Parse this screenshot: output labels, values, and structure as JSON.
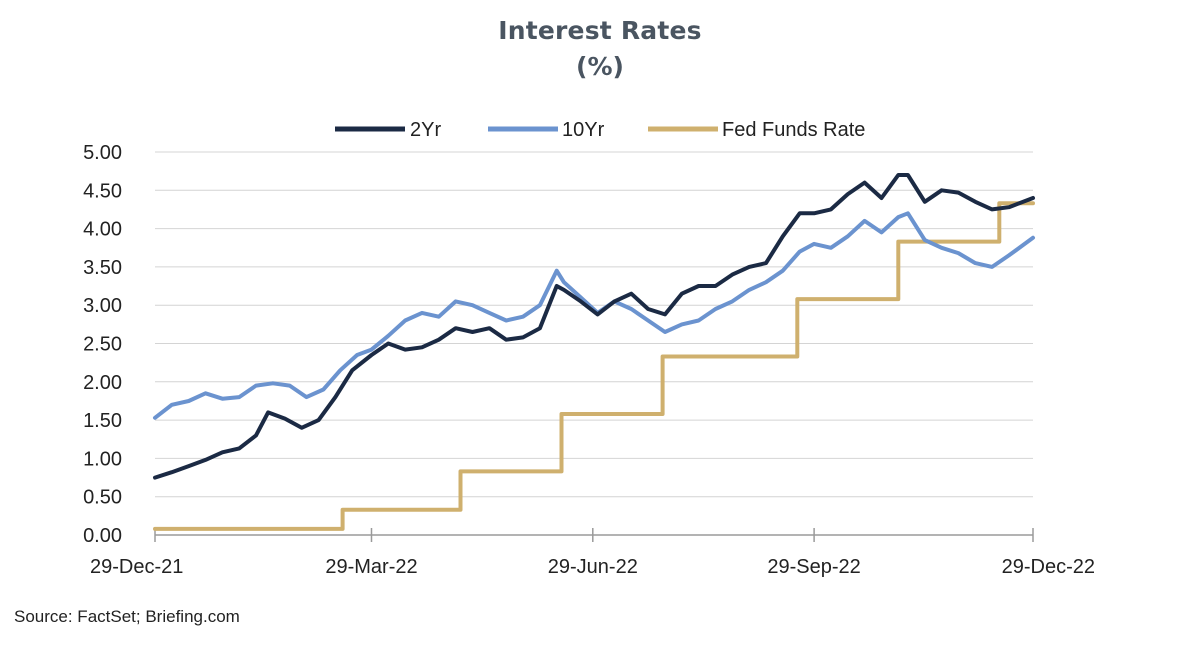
{
  "colors": {
    "two_yr": "#1b2a44",
    "ten_yr": "#6b93cf",
    "fed": "#cfb06e",
    "grid": "#d4d4d4",
    "axis": "#9a9a9a",
    "text": "#222222"
  },
  "footer": {
    "source": "Source: FactSet; Briefing.com"
  },
  "chart_data": {
    "type": "line",
    "title": "Interest Rates",
    "subtitle": "(%)",
    "xlabel": "",
    "ylabel": "",
    "x_range": [
      "2021-12-29",
      "2022-12-29"
    ],
    "ylim": [
      0,
      5
    ],
    "y_ticks": [
      "0.00",
      "0.50",
      "1.00",
      "1.50",
      "2.00",
      "2.50",
      "3.00",
      "3.50",
      "4.00",
      "4.50",
      "5.00"
    ],
    "x_ticks": [
      {
        "date": "2021-12-29",
        "label": "29-Dec-21"
      },
      {
        "date": "2022-03-29",
        "label": "29-Mar-22"
      },
      {
        "date": "2022-06-29",
        "label": "29-Jun-22"
      },
      {
        "date": "2022-09-29",
        "label": "29-Sep-22"
      },
      {
        "date": "2022-12-29",
        "label": "29-Dec-22"
      }
    ],
    "grid": true,
    "legend": "top",
    "series": [
      {
        "name": "2Yr",
        "style": "line",
        "points": [
          [
            "2021-12-29",
            0.75
          ],
          [
            "2022-01-05",
            0.82
          ],
          [
            "2022-01-12",
            0.9
          ],
          [
            "2022-01-19",
            0.98
          ],
          [
            "2022-01-26",
            1.08
          ],
          [
            "2022-02-02",
            1.13
          ],
          [
            "2022-02-09",
            1.3
          ],
          [
            "2022-02-14",
            1.6
          ],
          [
            "2022-02-21",
            1.52
          ],
          [
            "2022-02-28",
            1.4
          ],
          [
            "2022-03-07",
            1.5
          ],
          [
            "2022-03-14",
            1.8
          ],
          [
            "2022-03-21",
            2.15
          ],
          [
            "2022-03-29",
            2.35
          ],
          [
            "2022-04-05",
            2.5
          ],
          [
            "2022-04-12",
            2.42
          ],
          [
            "2022-04-19",
            2.45
          ],
          [
            "2022-04-26",
            2.55
          ],
          [
            "2022-05-03",
            2.7
          ],
          [
            "2022-05-10",
            2.65
          ],
          [
            "2022-05-17",
            2.7
          ],
          [
            "2022-05-24",
            2.55
          ],
          [
            "2022-05-31",
            2.58
          ],
          [
            "2022-06-07",
            2.7
          ],
          [
            "2022-06-14",
            3.25
          ],
          [
            "2022-06-17",
            3.2
          ],
          [
            "2022-06-24",
            3.05
          ],
          [
            "2022-07-01",
            2.88
          ],
          [
            "2022-07-08",
            3.05
          ],
          [
            "2022-07-15",
            3.15
          ],
          [
            "2022-07-22",
            2.95
          ],
          [
            "2022-07-29",
            2.88
          ],
          [
            "2022-08-05",
            3.15
          ],
          [
            "2022-08-12",
            3.25
          ],
          [
            "2022-08-19",
            3.25
          ],
          [
            "2022-08-26",
            3.4
          ],
          [
            "2022-09-02",
            3.5
          ],
          [
            "2022-09-09",
            3.55
          ],
          [
            "2022-09-16",
            3.9
          ],
          [
            "2022-09-23",
            4.2
          ],
          [
            "2022-09-29",
            4.2
          ],
          [
            "2022-10-06",
            4.25
          ],
          [
            "2022-10-13",
            4.45
          ],
          [
            "2022-10-20",
            4.6
          ],
          [
            "2022-10-27",
            4.4
          ],
          [
            "2022-11-03",
            4.7
          ],
          [
            "2022-11-07",
            4.7
          ],
          [
            "2022-11-14",
            4.35
          ],
          [
            "2022-11-21",
            4.5
          ],
          [
            "2022-11-28",
            4.47
          ],
          [
            "2022-12-05",
            4.35
          ],
          [
            "2022-12-12",
            4.25
          ],
          [
            "2022-12-19",
            4.28
          ],
          [
            "2022-12-29",
            4.4
          ]
        ]
      },
      {
        "name": "10Yr",
        "style": "line",
        "points": [
          [
            "2021-12-29",
            1.53
          ],
          [
            "2022-01-05",
            1.7
          ],
          [
            "2022-01-12",
            1.75
          ],
          [
            "2022-01-19",
            1.85
          ],
          [
            "2022-01-26",
            1.78
          ],
          [
            "2022-02-02",
            1.8
          ],
          [
            "2022-02-09",
            1.95
          ],
          [
            "2022-02-16",
            1.98
          ],
          [
            "2022-02-23",
            1.95
          ],
          [
            "2022-03-02",
            1.8
          ],
          [
            "2022-03-09",
            1.9
          ],
          [
            "2022-03-16",
            2.15
          ],
          [
            "2022-03-23",
            2.35
          ],
          [
            "2022-03-29",
            2.42
          ],
          [
            "2022-04-05",
            2.6
          ],
          [
            "2022-04-12",
            2.8
          ],
          [
            "2022-04-19",
            2.9
          ],
          [
            "2022-04-26",
            2.85
          ],
          [
            "2022-05-03",
            3.05
          ],
          [
            "2022-05-10",
            3.0
          ],
          [
            "2022-05-17",
            2.9
          ],
          [
            "2022-05-24",
            2.8
          ],
          [
            "2022-05-31",
            2.85
          ],
          [
            "2022-06-07",
            3.0
          ],
          [
            "2022-06-14",
            3.45
          ],
          [
            "2022-06-17",
            3.3
          ],
          [
            "2022-06-24",
            3.1
          ],
          [
            "2022-07-01",
            2.9
          ],
          [
            "2022-07-08",
            3.05
          ],
          [
            "2022-07-15",
            2.95
          ],
          [
            "2022-07-22",
            2.8
          ],
          [
            "2022-07-29",
            2.65
          ],
          [
            "2022-08-05",
            2.75
          ],
          [
            "2022-08-12",
            2.8
          ],
          [
            "2022-08-19",
            2.95
          ],
          [
            "2022-08-26",
            3.05
          ],
          [
            "2022-09-02",
            3.2
          ],
          [
            "2022-09-09",
            3.3
          ],
          [
            "2022-09-16",
            3.45
          ],
          [
            "2022-09-23",
            3.7
          ],
          [
            "2022-09-29",
            3.8
          ],
          [
            "2022-10-06",
            3.75
          ],
          [
            "2022-10-13",
            3.9
          ],
          [
            "2022-10-20",
            4.1
          ],
          [
            "2022-10-27",
            3.95
          ],
          [
            "2022-11-03",
            4.15
          ],
          [
            "2022-11-07",
            4.2
          ],
          [
            "2022-11-14",
            3.85
          ],
          [
            "2022-11-21",
            3.75
          ],
          [
            "2022-11-28",
            3.68
          ],
          [
            "2022-12-05",
            3.55
          ],
          [
            "2022-12-12",
            3.5
          ],
          [
            "2022-12-19",
            3.65
          ],
          [
            "2022-12-29",
            3.88
          ]
        ]
      },
      {
        "name": "Fed Funds Rate",
        "style": "step",
        "points": [
          [
            "2021-12-29",
            0.08
          ],
          [
            "2022-03-17",
            0.33
          ],
          [
            "2022-05-05",
            0.83
          ],
          [
            "2022-06-16",
            1.58
          ],
          [
            "2022-07-28",
            2.33
          ],
          [
            "2022-09-22",
            3.08
          ],
          [
            "2022-11-03",
            3.83
          ],
          [
            "2022-12-15",
            4.33
          ],
          [
            "2022-12-29",
            4.33
          ]
        ]
      }
    ]
  }
}
